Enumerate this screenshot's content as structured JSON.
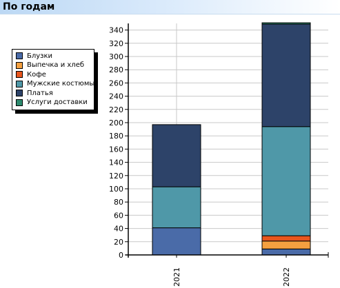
{
  "header": {
    "title": "По годам"
  },
  "colors": {
    "header_bg": "#d8e9fb",
    "grid": "#c8c8c8"
  },
  "chart_data": {
    "type": "bar",
    "stacked": true,
    "categories": [
      "2021",
      "2022"
    ],
    "series": [
      {
        "name": "Блузки",
        "color": "#4a6ba8",
        "values": [
          41,
          9
        ]
      },
      {
        "name": "Выпечка и хлеб",
        "color": "#f4a040",
        "values": [
          0,
          12
        ]
      },
      {
        "name": "Кофе",
        "color": "#e8561e",
        "values": [
          0,
          8
        ]
      },
      {
        "name": "Мужские костюмы",
        "color": "#4f98a8",
        "values": [
          62,
          165
        ]
      },
      {
        "name": "Платья",
        "color": "#2d4369",
        "values": [
          94,
          155
        ]
      },
      {
        "name": "Услуги доставки",
        "color": "#2d8a6e",
        "values": [
          0,
          2
        ]
      }
    ],
    "ylim": [
      0,
      350
    ],
    "yticks": [
      "0",
      "20",
      "40",
      "60",
      "80",
      "100",
      "120",
      "140",
      "160",
      "180",
      "200",
      "220",
      "240",
      "260",
      "280",
      "300",
      "320",
      "340"
    ],
    "grid": true,
    "legend_position": "left",
    "x_tick_rotation": "vertical"
  }
}
